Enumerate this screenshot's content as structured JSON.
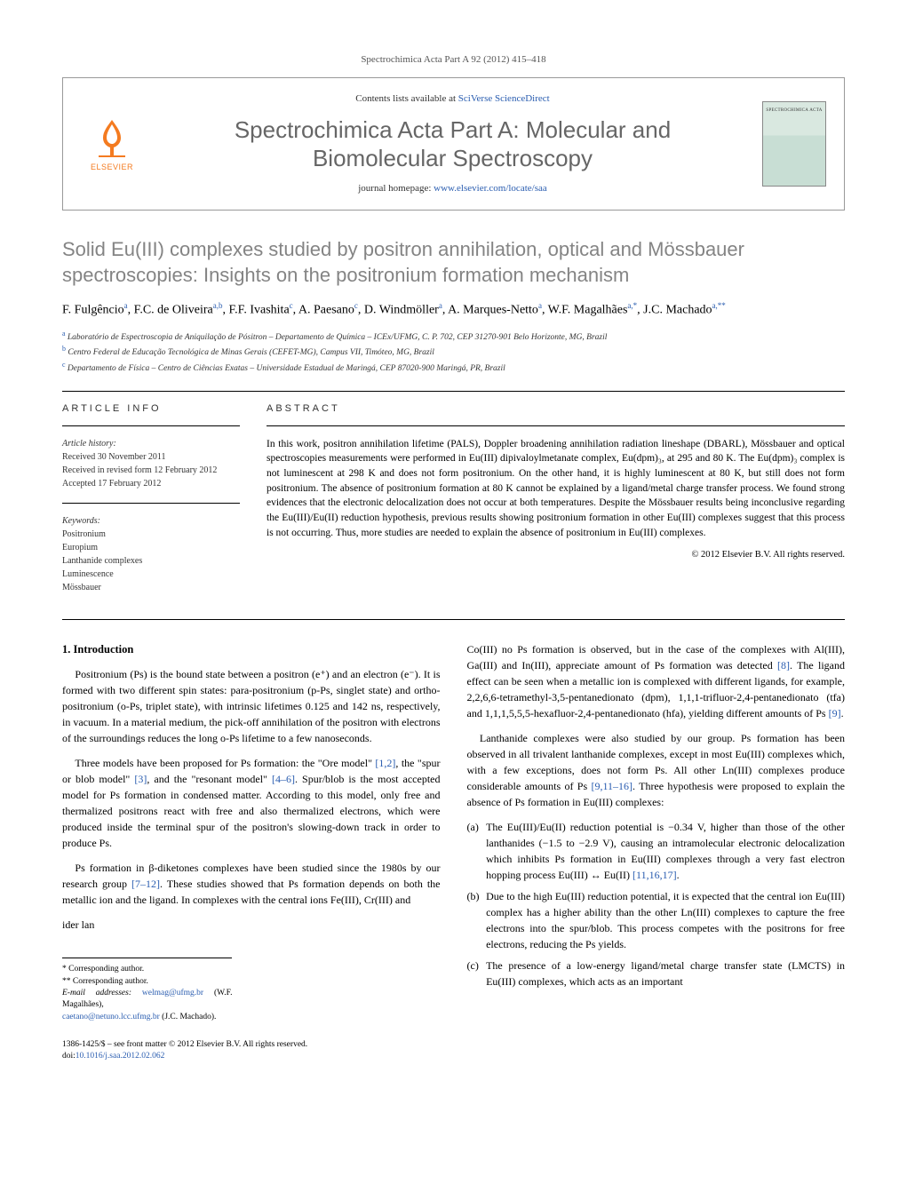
{
  "citation": "Spectrochimica Acta Part A 92 (2012) 415–418",
  "header": {
    "contents_prefix": "Contents lists available at ",
    "contents_link": "SciVerse ScienceDirect",
    "journal_title_l1": "Spectrochimica Acta Part A: Molecular and",
    "journal_title_l2": "Biomolecular Spectroscopy",
    "homepage_prefix": "journal homepage: ",
    "homepage_link": "www.elsevier.com/locate/saa",
    "publisher_name": "ELSEVIER",
    "cover_label": "SPECTROCHIMICA ACTA"
  },
  "article": {
    "title": "Solid Eu(III) complexes studied by positron annihilation, optical and Mössbauer spectroscopies: Insights on the positronium formation mechanism",
    "authors_html": "F. Fulgêncio<sup>a</sup>, F.C. de Oliveira<sup>a,b</sup>, F.F. Ivashita<sup>c</sup>, A. Paesano<sup>c</sup>, D. Windmöller<sup>a</sup>, A. Marques-Netto<sup>a</sup>, W.F. Magalhães<sup>a,*</sup>, J.C. Machado<sup>a,**</sup>",
    "affiliations": [
      {
        "sup": "a",
        "text": "Laboratório de Espectroscopia de Aniquilação de Pósitron – Departamento de Química – ICEx/UFMG, C. P. 702, CEP 31270-901 Belo Horizonte, MG, Brazil"
      },
      {
        "sup": "b",
        "text": "Centro Federal de Educação Tecnológica de Minas Gerais (CEFET-MG), Campus VII, Timóteo, MG, Brazil"
      },
      {
        "sup": "c",
        "text": "Departamento de Física – Centro de Ciências Exatas – Universidade Estadual de Maringá, CEP 87020-900 Maringá, PR, Brazil"
      }
    ]
  },
  "article_info": {
    "heading": "article info",
    "history_label": "Article history:",
    "history": [
      "Received 30 November 2011",
      "Received in revised form 12 February 2012",
      "Accepted 17 February 2012"
    ],
    "keywords_label": "Keywords:",
    "keywords": [
      "Positronium",
      "Europium",
      "Lanthanide complexes",
      "Luminescence",
      "Mössbauer"
    ]
  },
  "abstract": {
    "heading": "abstract",
    "text": "In this work, positron annihilation lifetime (PALS), Doppler broadening annihilation radiation lineshape (DBARL), Mössbauer and optical spectroscopies measurements were performed in Eu(III) dipivaloylmetanate complex, Eu(dpm)₃, at 295 and 80 K. The Eu(dpm)₃ complex is not luminescent at 298 K and does not form positronium. On the other hand, it is highly luminescent at 80 K, but still does not form positronium. The absence of positronium formation at 80 K cannot be explained by a ligand/metal charge transfer process. We found strong evidences that the electronic delocalization does not occur at both temperatures. Despite the Mössbauer results being inconclusive regarding the Eu(III)/Eu(II) reduction hypothesis, previous results showing positronium formation in other Eu(III) complexes suggest that this process is not occurring. Thus, more studies are needed to explain the absence of positronium in Eu(III) complexes.",
    "copyright": "© 2012 Elsevier B.V. All rights reserved."
  },
  "body": {
    "section1_heading": "1. Introduction",
    "left": [
      "Positronium (Ps) is the bound state between a positron (e⁺) and an electron (e⁻). It is formed with two different spin states: para-positronium (p-Ps, singlet state) and ortho-positronium (o-Ps, triplet state), with intrinsic lifetimes 0.125 and 142 ns, respectively, in vacuum. In a material medium, the pick-off annihilation of the positron with electrons of the surroundings reduces the long o-Ps lifetime to a few nanoseconds.",
      "Three models have been proposed for Ps formation: the \"Ore model\" [1,2], the \"spur or blob model\" [3], and the \"resonant model\" [4–6]. Spur/blob is the most accepted model for Ps formation in condensed matter. According to this model, only free and thermalized positrons react with free and also thermalized electrons, which were produced inside the terminal spur of the positron's slowing-down track in order to produce Ps.",
      "Ps formation in β-diketones complexes have been studied since the 1980s by our research group [7–12]. These studies showed that Ps formation depends on both the metallic ion and the ligand. In complexes with the central ions Fe(III), Cr(III) and"
    ],
    "right_intro": "Co(III) no Ps formation is observed, but in the case of the complexes with Al(III), Ga(III) and In(III), appreciate amount of Ps formation was detected [8]. The ligand effect can be seen when a metallic ion is complexed with different ligands, for example, 2,2,6,6-tetramethyl-3,5-pentanedionato (dpm), 1,1,1-trifluor-2,4-pentanedionato (tfa) and 1,1,1,5,5,5-hexafluor-2,4-pentanedionato (hfa), yielding different amounts of Ps [9].",
    "right_p2": "Lanthanide complexes were also studied by our group. Ps formation has been observed in all trivalent lanthanide complexes, except in most Eu(III) complexes which, with a few exceptions, does not form Ps. All other Ln(III) complexes produce considerable amounts of Ps [9,11–16]. Three hypothesis were proposed to explain the absence of Ps formation in Eu(III) complexes:",
    "right_list": [
      {
        "marker": "(a)",
        "text": "The Eu(III)/Eu(II) reduction potential is −0.34 V, higher than those of the other lanthanides (−1.5 to −2.9 V), causing an intramolecular electronic delocalization which inhibits Ps formation in Eu(III) complexes through a very fast electron hopping process Eu(III) ↔ Eu(II) [11,16,17]."
      },
      {
        "marker": "(b)",
        "text": "Due to the high Eu(III) reduction potential, it is expected that the central ion Eu(III) complex has a higher ability than the other Ln(III) complexes to capture the free electrons into the spur/blob. This process competes with the positrons for free electrons, reducing the Ps yields."
      },
      {
        "marker": "(c)",
        "text": "The presence of a low-energy ligand/metal charge transfer state (LMCTS) in Eu(III) complexes, which acts as an important"
      }
    ]
  },
  "footnotes": {
    "corr1": "* Corresponding author.",
    "corr2": "** Corresponding author.",
    "email_label": "E-mail addresses: ",
    "email1": "welmag@ufmg.br",
    "email1_name": " (W.F. Magalhães), ",
    "email2": "caetano@netuno.lcc.ufmg.br",
    "email2_name": " (J.C. Machado)."
  },
  "footer": {
    "issn_line": "1386-1425/$ – see front matter © 2012 Elsevier B.V. All rights reserved.",
    "doi_prefix": "doi:",
    "doi": "10.1016/j.saa.2012.02.062"
  },
  "colors": {
    "link": "#2a5db0",
    "elsevier_orange": "#f47b20",
    "title_gray": "#848484"
  }
}
